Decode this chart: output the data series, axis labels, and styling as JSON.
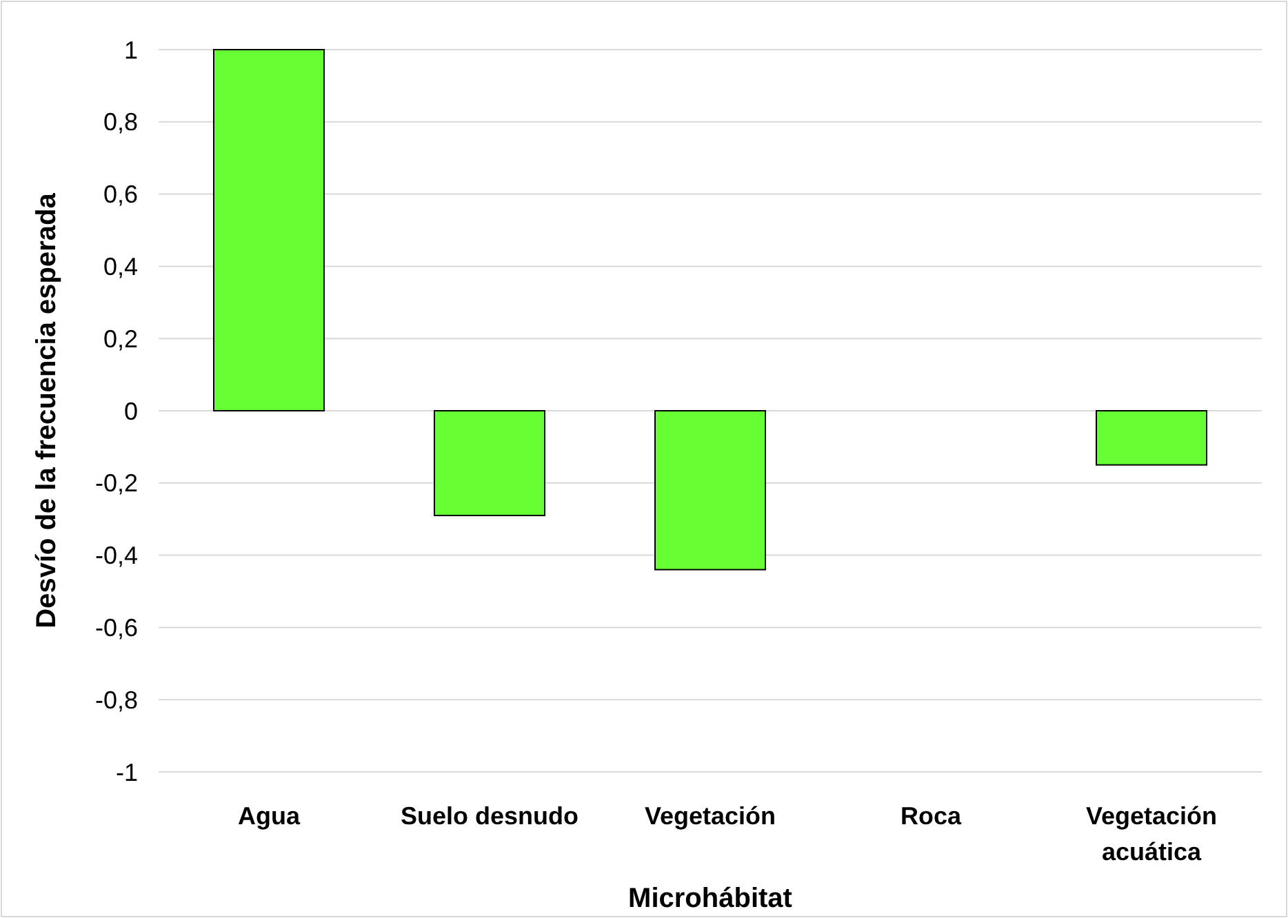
{
  "chart_data": {
    "type": "bar",
    "xlabel": "Microhábitat",
    "ylabel": "Desvío de la frecuencia esperada",
    "categories": [
      "Agua",
      "Suelo desnudo",
      "Vegetación",
      "Roca",
      "Vegetación acuática"
    ],
    "values": [
      1,
      -0.29,
      -0.44,
      0,
      -0.15
    ],
    "color": "#66ff33",
    "ylim": [
      -1,
      1
    ],
    "yticks": [
      {
        "value": -1,
        "label": "-1"
      },
      {
        "value": -0.8,
        "label": "-0,8"
      },
      {
        "value": -0.6,
        "label": "-0,6"
      },
      {
        "value": -0.4,
        "label": "-0,4"
      },
      {
        "value": -0.2,
        "label": "-0,2"
      },
      {
        "value": 0,
        "label": "0"
      },
      {
        "value": 0.2,
        "label": "0,2"
      },
      {
        "value": 0.4,
        "label": "0,4"
      },
      {
        "value": 0.6,
        "label": "0,6"
      },
      {
        "value": 0.8,
        "label": "0,8"
      },
      {
        "value": 1,
        "label": "1"
      }
    ],
    "grid": true
  }
}
